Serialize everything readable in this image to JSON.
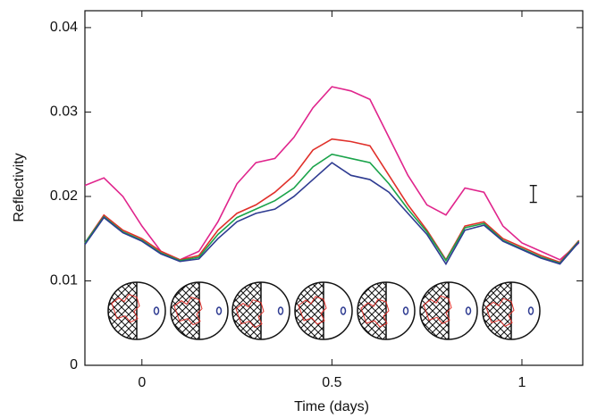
{
  "chart_data": {
    "type": "line",
    "x_label": "Time (days)",
    "y_label": "Reflectivity",
    "x": [
      -0.15,
      -0.1,
      -0.05,
      0,
      0.05,
      0.1,
      0.15,
      0.2,
      0.25,
      0.3,
      0.35,
      0.4,
      0.45,
      0.5,
      0.55,
      0.6,
      0.65,
      0.7,
      0.75,
      0.8,
      0.85,
      0.9,
      0.95,
      1.0,
      1.05,
      1.1,
      1.15
    ],
    "series": [
      {
        "color": "#e0248c",
        "values": [
          0.0213,
          0.0222,
          0.02,
          0.0165,
          0.0135,
          0.0125,
          0.0135,
          0.017,
          0.0215,
          0.024,
          0.0245,
          0.027,
          0.0305,
          0.033,
          0.0325,
          0.0315,
          0.027,
          0.0225,
          0.019,
          0.0178,
          0.021,
          0.0205,
          0.0165,
          0.0145,
          0.0135,
          0.0125,
          0.0145
        ]
      },
      {
        "color": "#e0302a",
        "values": [
          0.0145,
          0.0178,
          0.016,
          0.015,
          0.0135,
          0.0125,
          0.013,
          0.016,
          0.018,
          0.019,
          0.0205,
          0.0225,
          0.0255,
          0.0268,
          0.0265,
          0.026,
          0.0225,
          0.019,
          0.016,
          0.0125,
          0.0165,
          0.017,
          0.015,
          0.014,
          0.013,
          0.0122,
          0.0148
        ]
      },
      {
        "color": "#1aa34a",
        "values": [
          0.0145,
          0.0176,
          0.0158,
          0.0148,
          0.0133,
          0.0124,
          0.0128,
          0.0155,
          0.0175,
          0.0185,
          0.0195,
          0.021,
          0.0235,
          0.025,
          0.0245,
          0.024,
          0.0215,
          0.0185,
          0.0158,
          0.0124,
          0.0163,
          0.0168,
          0.0148,
          0.0138,
          0.0128,
          0.0121,
          0.0147
        ]
      },
      {
        "color": "#2e3b91",
        "values": [
          0.0143,
          0.0175,
          0.0157,
          0.0147,
          0.0132,
          0.0123,
          0.0126,
          0.015,
          0.017,
          0.018,
          0.0185,
          0.02,
          0.022,
          0.024,
          0.0225,
          0.022,
          0.0205,
          0.018,
          0.0155,
          0.012,
          0.016,
          0.0166,
          0.0147,
          0.0137,
          0.0127,
          0.012,
          0.0146
        ]
      }
    ],
    "error_bar": {
      "x": 1.03,
      "y": 0.0203,
      "error": 0.001
    },
    "xlim": [
      -0.15,
      1.16
    ],
    "ylim": [
      0,
      0.042
    ],
    "xticks": [
      0,
      0.5,
      1
    ],
    "yticks": [
      0,
      0.01,
      0.02,
      0.03,
      0.04
    ]
  }
}
